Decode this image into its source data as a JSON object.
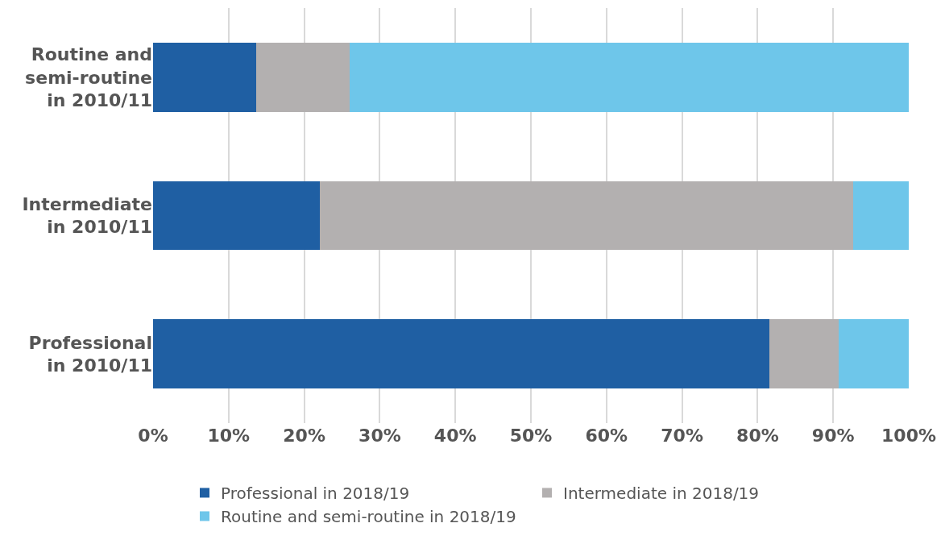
{
  "chart_data": {
    "type": "bar",
    "orientation": "horizontal",
    "stacked": true,
    "categories": [
      "Routine and\nsemi-routine\nin 2010/11",
      "Intermediate\nin 2010/11",
      "Professional\nin 2010/11"
    ],
    "series": [
      {
        "name": "Professional in 2018/19",
        "color": "#1f5fa3",
        "values": [
          13.6,
          22.1,
          81.6
        ]
      },
      {
        "name": "Intermediate in 2018/19",
        "color": "#b3b0b0",
        "values": [
          12.4,
          70.5,
          9.1
        ]
      },
      {
        "name": "Routine and semi-routine in 2018/19",
        "color": "#6ec6ea",
        "values": [
          74.0,
          7.4,
          9.3
        ]
      }
    ],
    "xlim": [
      0,
      100
    ],
    "xticks": [
      {
        "value": 0,
        "label": "0%"
      },
      {
        "value": 10,
        "label": "10%"
      },
      {
        "value": 20,
        "label": "20%"
      },
      {
        "value": 30,
        "label": "30%"
      },
      {
        "value": 40,
        "label": "40%"
      },
      {
        "value": 50,
        "label": "50%"
      },
      {
        "value": 60,
        "label": "60%"
      },
      {
        "value": 70,
        "label": "70%"
      },
      {
        "value": 80,
        "label": "80%"
      },
      {
        "value": 90,
        "label": "90%"
      },
      {
        "value": 100,
        "label": "100%"
      }
    ],
    "grid": "x",
    "legend": "bottom"
  }
}
